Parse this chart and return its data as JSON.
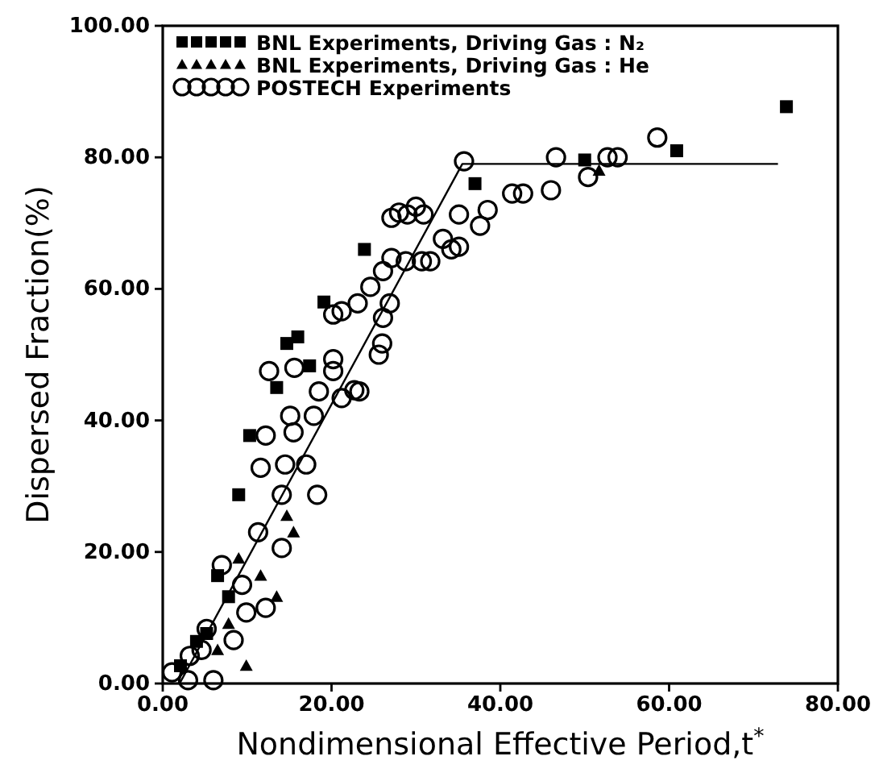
{
  "chart_data": {
    "type": "scatter",
    "xlabel": "Nondimensional Effective Period,t$^{*}$",
    "ylabel": "Dispersed Fraction(%)",
    "xlim": [
      0,
      80
    ],
    "ylim": [
      0,
      100
    ],
    "xticks": [
      {
        "value": 0,
        "label": "0.00"
      },
      {
        "value": 20,
        "label": "20.00"
      },
      {
        "value": 40,
        "label": "40.00"
      },
      {
        "value": 60,
        "label": "60.00"
      },
      {
        "value": 80,
        "label": "80.00"
      }
    ],
    "yticks": [
      {
        "value": 0,
        "label": "0.00"
      },
      {
        "value": 20,
        "label": "20.00"
      },
      {
        "value": 40,
        "label": "40.00"
      },
      {
        "value": 60,
        "label": "60.00"
      },
      {
        "value": 80,
        "label": "80.00"
      },
      {
        "value": 100,
        "label": "100.00"
      }
    ],
    "legend": "top left",
    "grid": false,
    "series": [
      {
        "name": "BNL Experiments, Driving Gas : N₂",
        "color": "#000000",
        "marker": "square",
        "x": [
          73.9,
          60.9,
          50,
          37,
          23.9,
          19.1,
          14.7,
          16,
          17.4,
          13.5,
          10.3,
          9,
          6.5,
          5.2,
          2.1,
          4,
          7.8
        ],
        "values": [
          87.7,
          81,
          79.6,
          76,
          66,
          58,
          51.7,
          52.7,
          48.3,
          45,
          37.7,
          28.7,
          16.4,
          7.6,
          2.7,
          6.4,
          13.2
        ]
      },
      {
        "name": "BNL Experiments, Driving Gas : He",
        "color": "#000000",
        "marker": "triangle",
        "x": [
          51.7,
          15.5,
          9.9,
          7.8,
          11.6,
          13.5,
          6.5,
          9,
          14.7
        ],
        "values": [
          78,
          23,
          2.7,
          9.1,
          16.4,
          13.2,
          5.1,
          19,
          25.5
        ]
      },
      {
        "name": "POSTECH Experiments",
        "color": "#000000",
        "marker": "circle",
        "x": [
          35.7,
          46.6,
          50.4,
          52.7,
          53.9,
          58.6,
          46,
          41.4,
          42.7,
          38.5,
          35.1,
          28,
          30,
          35.1,
          27.1,
          29,
          30.9,
          37.6,
          33.2,
          34.2,
          27.1,
          28.8,
          30.7,
          31.7,
          26.1,
          24.6,
          23.1,
          21.2,
          20.2,
          26.9,
          26.1,
          26,
          25.6,
          20.2,
          20.2,
          12.6,
          15.6,
          18.5,
          21.2,
          22.7,
          23.3,
          15.1,
          17.9,
          12.2,
          15.5,
          11.6,
          14.5,
          17,
          18.3,
          14.1,
          11.3,
          14.1,
          12.2,
          9.9,
          4.6,
          3.2,
          1.1,
          3,
          6,
          7,
          9.4,
          5.2,
          8.4
        ],
        "values": [
          79.4,
          80,
          77,
          80,
          80,
          83,
          75,
          74.5,
          74.5,
          72,
          71.3,
          71.6,
          72.5,
          66.4,
          70.8,
          71.3,
          71.3,
          69.6,
          67.6,
          66,
          64.7,
          64.2,
          64.2,
          64.2,
          62.7,
          60.3,
          57.8,
          56.6,
          56.1,
          57.8,
          55.6,
          51.7,
          50,
          49.3,
          47.5,
          47.5,
          48,
          44.4,
          43.4,
          44.6,
          44.4,
          40.7,
          40.7,
          37.7,
          38.2,
          32.8,
          33.3,
          33.3,
          28.7,
          28.7,
          23,
          20.6,
          11.5,
          10.8,
          5.1,
          4.2,
          1.7,
          0.5,
          0.5,
          18,
          15,
          8.3,
          6.6
        ]
      },
      {
        "type": "line",
        "color": "#000000",
        "marker": "none",
        "line_style": "solid",
        "x": [
          2,
          35.5,
          72.9
        ],
        "values": [
          0,
          79,
          79
        ]
      }
    ]
  }
}
